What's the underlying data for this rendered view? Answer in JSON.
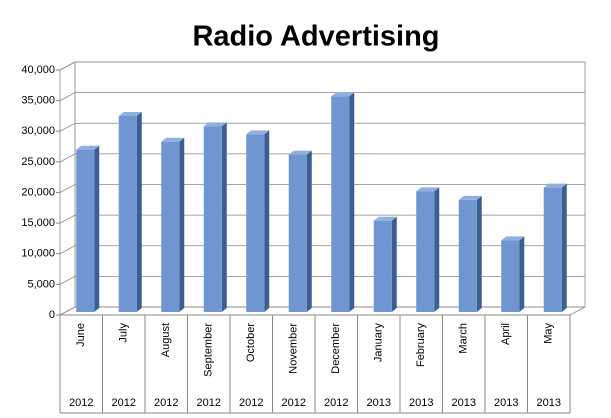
{
  "chart_data": {
    "type": "bar",
    "title": "Radio Advertising",
    "categories": [
      "June",
      "July",
      "August",
      "September",
      "October",
      "November",
      "December",
      "January",
      "February",
      "March",
      "April",
      "May"
    ],
    "years": [
      "2012",
      "2012",
      "2012",
      "2012",
      "2012",
      "2012",
      "2012",
      "2013",
      "2013",
      "2013",
      "2013",
      "2013"
    ],
    "values": [
      26500,
      32000,
      27800,
      30300,
      29000,
      25700,
      35200,
      14900,
      19700,
      18300,
      11700,
      20300
    ],
    "color": "#6f96d0",
    "ylim": [
      0,
      40000
    ],
    "yticks": [
      0,
      {
        "value": 5000,
        "label": "5,000"
      },
      {
        "value": 10000,
        "label": "10,000"
      },
      {
        "value": 15000,
        "label": "15,000"
      },
      {
        "value": 20000,
        "label": "20,000"
      },
      {
        "value": 25000,
        "label": "25,000"
      },
      {
        "value": 30000,
        "label": "30,000"
      },
      {
        "value": 35000,
        "label": "35,000"
      },
      {
        "value": 40000,
        "label": "40,000"
      }
    ],
    "grid": true
  }
}
